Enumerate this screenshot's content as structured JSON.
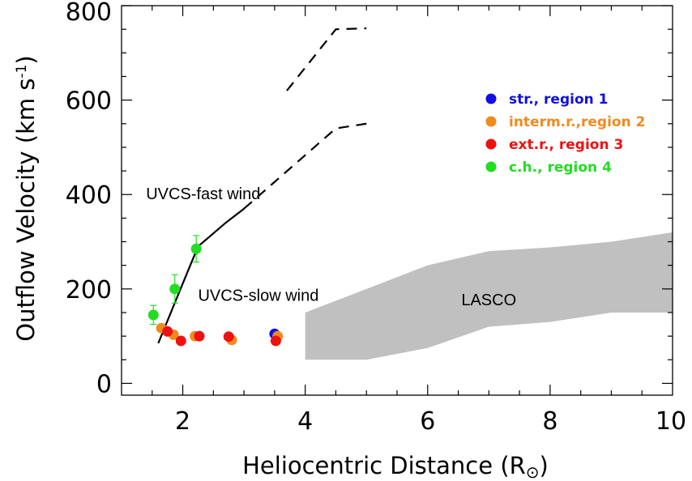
{
  "chart_data": {
    "type": "scatter",
    "xlabel": "Heliocentric Distance (R",
    "xlabel_symbol": "⊙",
    "xlabel_close": ")",
    "ylabel": "Outflow Velocity (km s",
    "ylabel_sup": "-1",
    "ylabel_close": ")",
    "xlim": [
      1,
      10
    ],
    "ylim": [
      -25,
      800
    ],
    "x_ticks": [
      2,
      4,
      6,
      8,
      10
    ],
    "y_ticks": [
      0,
      200,
      400,
      600,
      800
    ],
    "x_minor_step": 0.5,
    "y_minor_step": 50,
    "grid": false,
    "legend_position": "top-right",
    "series": [
      {
        "name": "str., region 1",
        "color": "#1010e0",
        "points": [
          [
            3.5,
            105
          ]
        ]
      },
      {
        "name": "interm.r.,region 2",
        "color": "#f08a1e",
        "points": [
          [
            1.65,
            117
          ],
          [
            1.85,
            103
          ],
          [
            2.2,
            100
          ],
          [
            2.8,
            92
          ],
          [
            3.55,
            100
          ]
        ]
      },
      {
        "name": "ext.r., region 3",
        "color": "#ee1111",
        "points": [
          [
            1.75,
            110
          ],
          [
            1.97,
            90
          ],
          [
            2.27,
            100
          ],
          [
            2.75,
            99
          ],
          [
            3.52,
            90
          ]
        ]
      },
      {
        "name": "c.h., region 4",
        "color": "#22dd22",
        "points": [
          [
            1.52,
            145
          ],
          [
            1.87,
            200
          ],
          [
            2.22,
            285
          ]
        ],
        "errors": [
          20,
          30,
          28
        ]
      }
    ],
    "lines": [
      {
        "label": "UVCS-fast wind",
        "style": "solid",
        "points": [
          [
            1.6,
            85
          ],
          [
            1.9,
            180
          ],
          [
            2.25,
            290
          ],
          [
            2.7,
            340
          ],
          [
            3.0,
            370
          ]
        ]
      },
      {
        "label": "UVCS-fast wind",
        "style": "dashed",
        "points": [
          [
            3.0,
            370
          ],
          [
            4.5,
            540
          ],
          [
            5.0,
            550
          ]
        ]
      },
      {
        "label": "",
        "style": "dashed",
        "points": [
          [
            3.7,
            620
          ],
          [
            4.5,
            750
          ],
          [
            5.0,
            752
          ]
        ]
      }
    ],
    "band": {
      "label": "LASCO",
      "color": "#c0c0c0",
      "upper": [
        [
          4,
          150
        ],
        [
          5,
          200
        ],
        [
          6,
          250
        ],
        [
          7,
          280
        ],
        [
          8,
          288
        ],
        [
          9,
          300
        ],
        [
          10,
          320
        ]
      ],
      "lower": [
        [
          4,
          50
        ],
        [
          5,
          50
        ],
        [
          6,
          75
        ],
        [
          7,
          120
        ],
        [
          8,
          130
        ],
        [
          9,
          150
        ],
        [
          10,
          150
        ]
      ]
    },
    "annotations": [
      {
        "text": "UVCS-fast wind",
        "x": 1.4,
        "y": 390
      },
      {
        "text": "UVCS-slow wind",
        "x": 2.25,
        "y": 175
      },
      {
        "text": "LASCO",
        "x": 6.55,
        "y": 165
      }
    ]
  }
}
